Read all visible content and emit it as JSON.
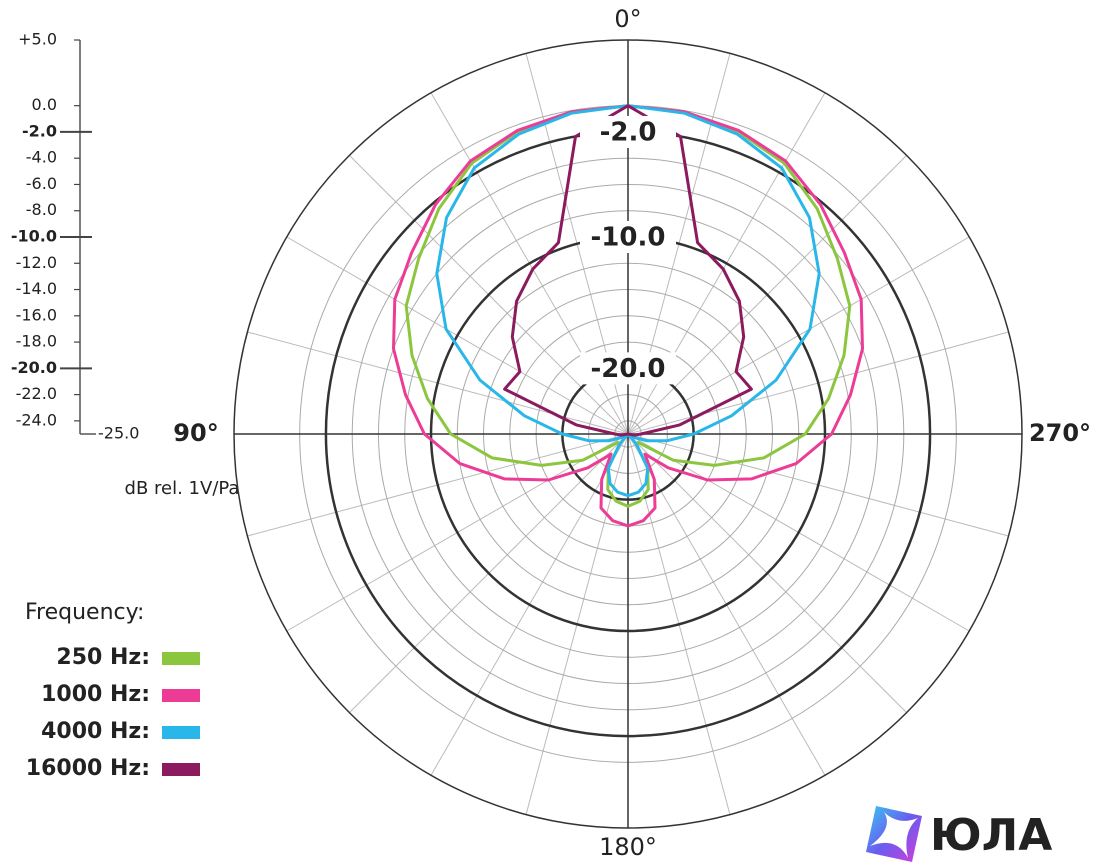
{
  "chart_data": {
    "type": "polar",
    "x": [
      0,
      10,
      20,
      30,
      40,
      50,
      60,
      70,
      80,
      90,
      100,
      110,
      120,
      130,
      140,
      150,
      160,
      170,
      180,
      190,
      200,
      210,
      220,
      230,
      240,
      250,
      260,
      270,
      280,
      290,
      300,
      310,
      320,
      330,
      340,
      350
    ],
    "series": [
      {
        "name": "250 Hz:",
        "color": "#8cc63f",
        "values": [
          0,
          -0.1,
          -0.5,
          -1.2,
          -2.6,
          -4.2,
          -5.5,
          -7.5,
          -9.5,
          -11.5,
          -14.5,
          -18,
          -21,
          -24,
          -24,
          -22,
          -20.5,
          -19.8,
          -19.5,
          -19.8,
          -20.5,
          -22,
          -24,
          -24,
          -21,
          -18,
          -14.5,
          -11.5,
          -9.5,
          -7.5,
          -5.5,
          -4.2,
          -2.6,
          -1.2,
          -0.5,
          -0.1
        ]
      },
      {
        "name": "1000 Hz:",
        "color": "#ec3c96",
        "values": [
          0,
          -0.1,
          -0.4,
          -1,
          -2.2,
          -3.5,
          -4.5,
          -6,
          -7.8,
          -9.5,
          -12,
          -15,
          -18,
          -21,
          -23,
          -21,
          -19,
          -18.3,
          -18,
          -18.3,
          -19,
          -21,
          -23,
          -21,
          -18,
          -15,
          -12,
          -9.5,
          -7.8,
          -6,
          -4.5,
          -3.5,
          -2.2,
          -1,
          -0.4,
          -0.1
        ]
      },
      {
        "name": "4000 Hz:",
        "color": "#29b6e8",
        "values": [
          0,
          -0.2,
          -0.7,
          -1.6,
          -3.5,
          -6,
          -9,
          -13,
          -17,
          -20,
          -22,
          -23.5,
          -24.5,
          -25,
          -24,
          -22,
          -21,
          -20.5,
          -20.3,
          -20.5,
          -21,
          -22,
          -24,
          -25,
          -24.5,
          -23.5,
          -22,
          -20,
          -17,
          -13,
          -9,
          -6,
          -3.5,
          -1.6,
          -0.7,
          -0.2
        ]
      },
      {
        "name": "16000 Hz:",
        "color": "#8b1a5e",
        "values": [
          0,
          -2,
          -9.5,
          -10.5,
          -11.8,
          -13.5,
          -15.5,
          -15,
          -21,
          -24,
          -24.5,
          -25,
          -25,
          -25,
          -25,
          -25,
          -25,
          -25,
          -25,
          -25,
          -25,
          -25,
          -25,
          -25,
          -25,
          -25,
          -24.5,
          -24,
          -21,
          -15,
          -15.5,
          -13.5,
          -11.8,
          -10.5,
          -9.5,
          -2
        ]
      }
    ],
    "rlim": [
      -25,
      5
    ],
    "rticks": [
      {
        "value": 5,
        "label": "+5.0"
      },
      {
        "value": 0,
        "label": "0.0"
      },
      {
        "value": -2,
        "label": "-2.0"
      },
      {
        "value": -4,
        "label": "-4.0"
      },
      {
        "value": -6,
        "label": "-6.0"
      },
      {
        "value": -8,
        "label": "-8.0"
      },
      {
        "value": -10,
        "label": "-10.0"
      },
      {
        "value": -12,
        "label": "-12.0"
      },
      {
        "value": -14,
        "label": "-14.0"
      },
      {
        "value": -16,
        "label": "-16.0"
      },
      {
        "value": -18,
        "label": "-18.0"
      },
      {
        "value": -20,
        "label": "-20.0"
      },
      {
        "value": -22,
        "label": "-22.0"
      },
      {
        "value": -24,
        "label": "-24.0"
      },
      {
        "value": -25,
        "label": "-25.0"
      }
    ],
    "major_rticks": [
      -2,
      -10,
      -20
    ],
    "thetaticks": [
      {
        "value": 0,
        "label": "0°"
      },
      {
        "value": 90,
        "label": "90°"
      },
      {
        "value": 180,
        "label": "180°"
      },
      {
        "value": 270,
        "label": "270°"
      }
    ],
    "theta_grid_step": 15,
    "r_label": "dB rel. 1V/Pa",
    "legend_title": "Frequency:",
    "watermark": "ЮЛА"
  }
}
